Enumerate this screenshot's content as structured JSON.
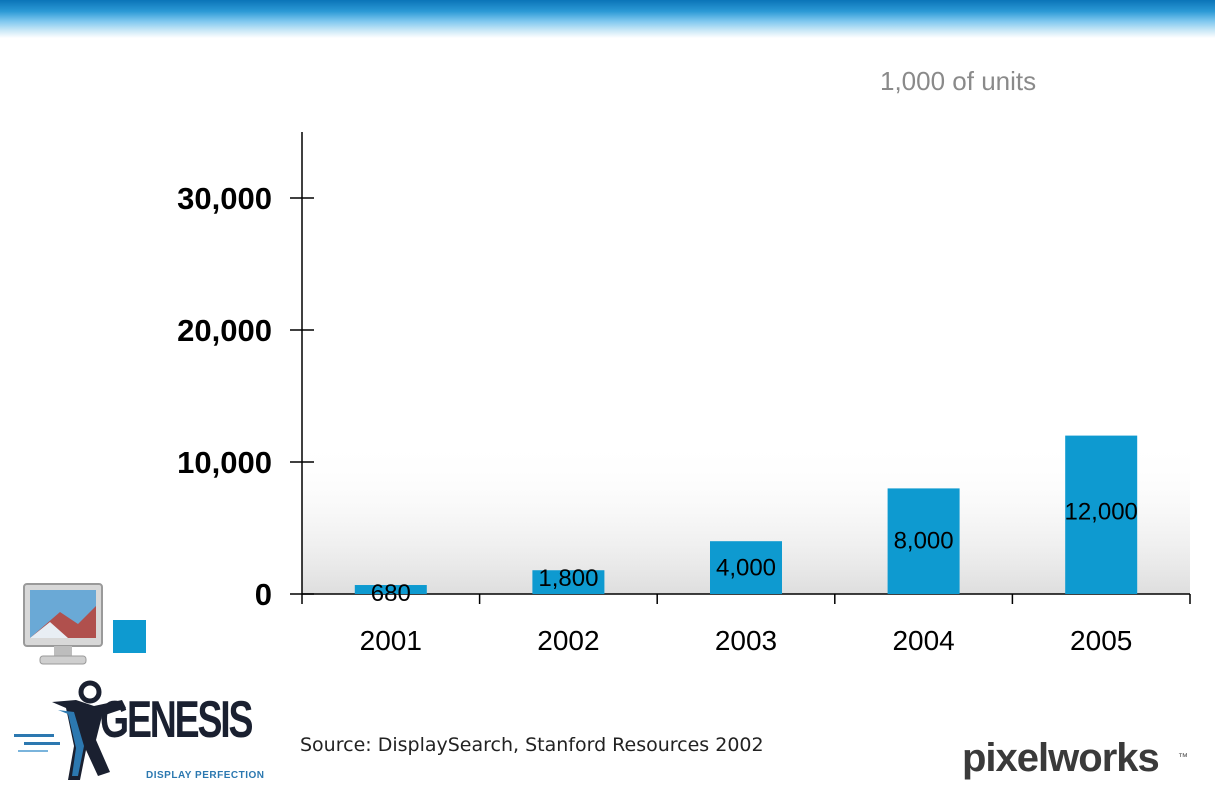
{
  "chart_data": {
    "type": "bar",
    "unit_label": "1,000 of units",
    "categories": [
      "2001",
      "2002",
      "2003",
      "2004",
      "2005"
    ],
    "values": [
      680,
      1800,
      4000,
      8000,
      12000
    ],
    "data_labels": [
      "680",
      "1,800",
      "4,000",
      "8,000",
      "12,000"
    ],
    "ylim": [
      0,
      35000
    ],
    "yticks": [
      0,
      10000,
      20000,
      30000
    ],
    "ytick_labels": [
      "0",
      "10,000",
      "20,000",
      "30,000"
    ],
    "bar_color": "#0e9ad0",
    "grid": false
  },
  "footer": {
    "source": "Source:  DisplaySearch, Stanford Resources 2002",
    "genesis_logo": "GENESIS",
    "genesis_tagline": "DISPLAY PERFECTION",
    "pixelworks_logo": "pixelworks",
    "pixelworks_tm": "™"
  },
  "colors": {
    "top_bar": "#2c9ad6",
    "accent": "#0e9ad0"
  }
}
